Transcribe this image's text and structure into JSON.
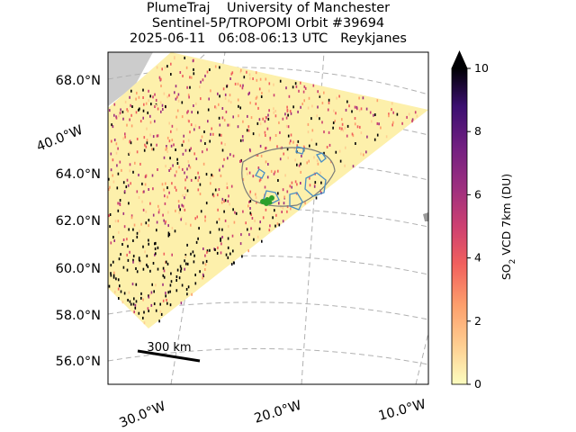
{
  "header": {
    "line1": "PlumeTraj    University of Manchester",
    "line2": "Sentinel-5P/TROPOMI Orbit #39694",
    "line3": "2025-06-11   06:08-06:13 UTC   Reykjanes"
  },
  "chart_data": {
    "type": "map",
    "title": "PlumeTraj    University of Manchester | Sentinel-5P/TROPOMI Orbit #39694 | 2025-06-11   06:08-06:13 UTC   Reykjanes",
    "lat_ticks": [
      "68.0°N",
      "64.0°N",
      "62.0°N",
      "60.0°N",
      "58.0°N",
      "56.0°N"
    ],
    "lon_ticks": [
      "40.0°W",
      "30.0°W",
      "20.0°W",
      "10.0°W"
    ],
    "scale_bar_label": "300 km",
    "colorbar": {
      "label": "SO2 VCD 7km (DU)",
      "min": 0,
      "max": 10,
      "ticks": [
        "0",
        "2",
        "4",
        "6",
        "8",
        "10"
      ],
      "colormap": "magma_r",
      "extend": "max"
    },
    "colors": {
      "land": "#cccccc",
      "background_swath": "#fdf0ab",
      "plume_outline": "#4a8fc4",
      "source_marker": "#2ca02c",
      "coast": "#6b6b6b"
    }
  }
}
